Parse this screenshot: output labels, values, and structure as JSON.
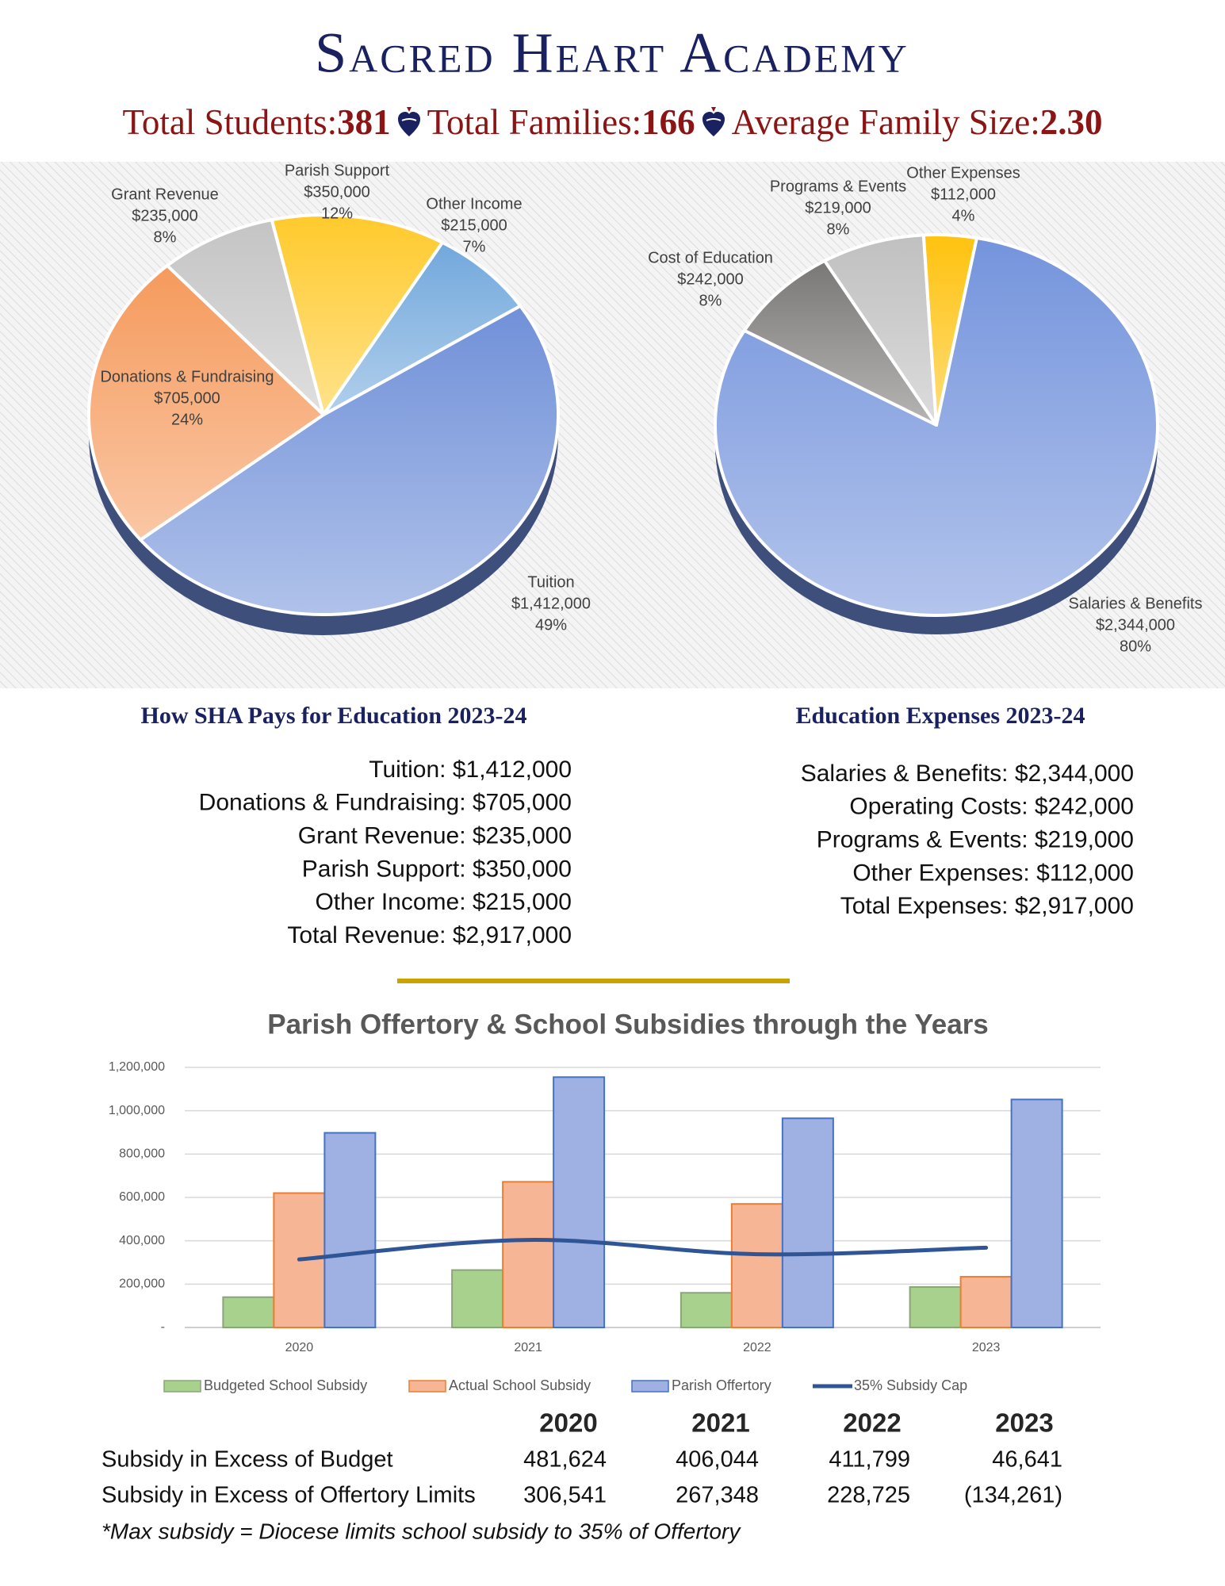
{
  "header": {
    "title": "Sacred Heart Academy",
    "stats": [
      {
        "label": "Total Students:",
        "value": "381"
      },
      {
        "label": "Total Families:",
        "value": "166"
      },
      {
        "label": "Average Family Size:",
        "value": "2.30"
      }
    ]
  },
  "chart_data": [
    {
      "type": "pie",
      "categories": [
        "Tuition",
        "Donations & Fundraising",
        "Grant Revenue",
        "Parish Support",
        "Other Income"
      ],
      "values": [
        1412000,
        705000,
        235000,
        350000,
        215000
      ],
      "value_labels": [
        "$1,412,000",
        "$705,000",
        "$235,000",
        "$350,000",
        "$215,000"
      ],
      "percent_labels": [
        "49%",
        "24%",
        "8%",
        "12%",
        "7%"
      ],
      "colors": [
        "#7090d8",
        "#f59a5c",
        "#c4c4c4",
        "#ffca2c",
        "#72a8dc"
      ]
    },
    {
      "type": "pie",
      "categories": [
        "Salaries & Benefits",
        "Cost of Education",
        "Programs & Events",
        "Other Expenses"
      ],
      "values": [
        2344000,
        242000,
        219000,
        112000
      ],
      "value_labels": [
        "$2,344,000",
        "$242,000",
        "$219,000",
        "$112,000"
      ],
      "percent_labels": [
        "80%",
        "8%",
        "8%",
        "4%"
      ],
      "colors": [
        "#7494dc",
        "#7a7876",
        "#c0c0c0",
        "#ffc20e"
      ]
    },
    {
      "type": "bar",
      "title": "Parish Offertory & School Subsidies through the Years",
      "categories": [
        "2020",
        "2021",
        "2022",
        "2023"
      ],
      "series": [
        {
          "name": "Budgeted School Subsidy",
          "color": "#a9d18e",
          "edge": "#8aa57a",
          "values": [
            140000,
            265000,
            160000,
            187000
          ]
        },
        {
          "name": "Actual School Subsidy",
          "color": "#f6b696",
          "edge": "#ed7d31",
          "values": [
            620000,
            672000,
            570000,
            234000
          ]
        },
        {
          "name": "Parish Offertory",
          "color": "#9fb1e2",
          "edge": "#4472c4",
          "values": [
            898000,
            1155000,
            965000,
            1052000
          ]
        },
        {
          "name": "35% Subsidy Cap",
          "type": "line",
          "color": "#2f5597",
          "values": [
            314000,
            404000,
            338000,
            368000
          ]
        }
      ],
      "ylim": [
        0,
        1200000
      ],
      "yticks": [
        {
          "value": 0,
          "label": "-"
        },
        {
          "value": 200000,
          "label": "200,000"
        },
        {
          "value": 400000,
          "label": "400,000"
        },
        {
          "value": 600000,
          "label": "600,000"
        },
        {
          "value": 800000,
          "label": "800,000"
        },
        {
          "value": 1000000,
          "label": "1,000,000"
        },
        {
          "value": 1200000,
          "label": "1,200,000"
        }
      ],
      "grid": true,
      "legend": "bottom"
    }
  ],
  "revenue_list": {
    "title": "How SHA Pays for Education 2023-24",
    "items": [
      "Tuition: $1,412,000",
      "Donations & Fundraising: $705,000",
      "Grant Revenue: $235,000",
      "Parish Support: $350,000",
      "Other Income: $215,000",
      "Total Revenue: $2,917,000"
    ]
  },
  "expense_list": {
    "title": "Education Expenses 2023-24",
    "items": [
      "Salaries & Benefits: $2,344,000",
      "Operating Costs: $242,000",
      "Programs & Events: $219,000",
      "Other Expenses: $112,000",
      "Total Expenses: $2,917,000"
    ]
  },
  "subsidy_table": {
    "columns": [
      "2020",
      "2021",
      "2022",
      "2023"
    ],
    "rows": [
      {
        "label": "Subsidy in Excess of Budget",
        "values": [
          "481,624",
          "406,044",
          "411,799",
          "46,641"
        ]
      },
      {
        "label": "Subsidy in Excess of Offertory Limits",
        "values": [
          "306,541",
          "267,348",
          "228,725",
          "(134,261)"
        ]
      }
    ],
    "note": "*Max subsidy = Diocese limits school subsidy to 35% of Offertory"
  }
}
